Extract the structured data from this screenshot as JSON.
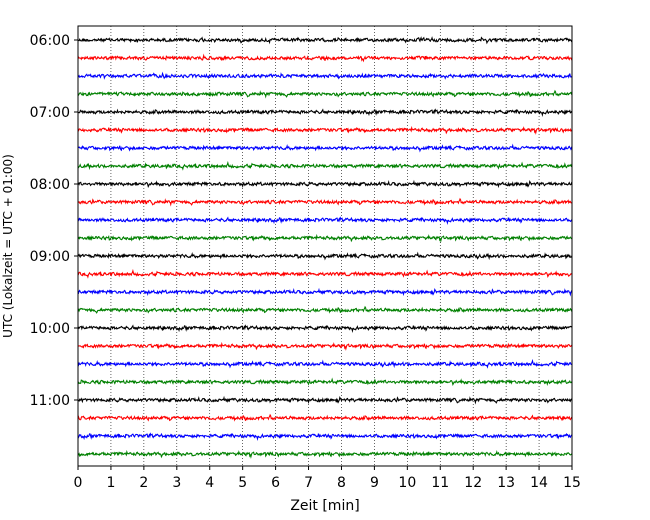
{
  "chart_data": {
    "type": "line",
    "title": "",
    "xlabel": "Zeit  [min]",
    "ylabel": "UTC (Lokalzeit = UTC + 01:00)",
    "xlim": [
      0,
      15
    ],
    "x_ticks": [
      "0",
      "1",
      "2",
      "3",
      "4",
      "5",
      "6",
      "7",
      "8",
      "9",
      "10",
      "11",
      "12",
      "13",
      "14",
      "15"
    ],
    "y_tick_labels": [
      "06:00",
      "07:00",
      "08:00",
      "09:00",
      "10:00",
      "11:00"
    ],
    "grid": "vertical dotted",
    "trace_start": "06:00",
    "trace_interval_minutes": 15,
    "trace_count": 24,
    "color_cycle": [
      "#000000",
      "#ff0000",
      "#0000ff",
      "#008000"
    ],
    "series": [
      {
        "start": "06:00"
      },
      {
        "start": "06:15"
      },
      {
        "start": "06:30"
      },
      {
        "start": "06:45"
      },
      {
        "start": "07:00"
      },
      {
        "start": "07:15"
      },
      {
        "start": "07:30"
      },
      {
        "start": "07:45"
      },
      {
        "start": "08:00"
      },
      {
        "start": "08:15"
      },
      {
        "start": "08:30"
      },
      {
        "start": "08:45"
      },
      {
        "start": "09:00"
      },
      {
        "start": "09:15"
      },
      {
        "start": "09:30"
      },
      {
        "start": "09:45"
      },
      {
        "start": "10:00"
      },
      {
        "start": "10:15"
      },
      {
        "start": "10:30"
      },
      {
        "start": "10:45"
      },
      {
        "start": "11:00"
      },
      {
        "start": "11:15"
      },
      {
        "start": "11:30"
      },
      {
        "start": "11:45"
      }
    ]
  }
}
